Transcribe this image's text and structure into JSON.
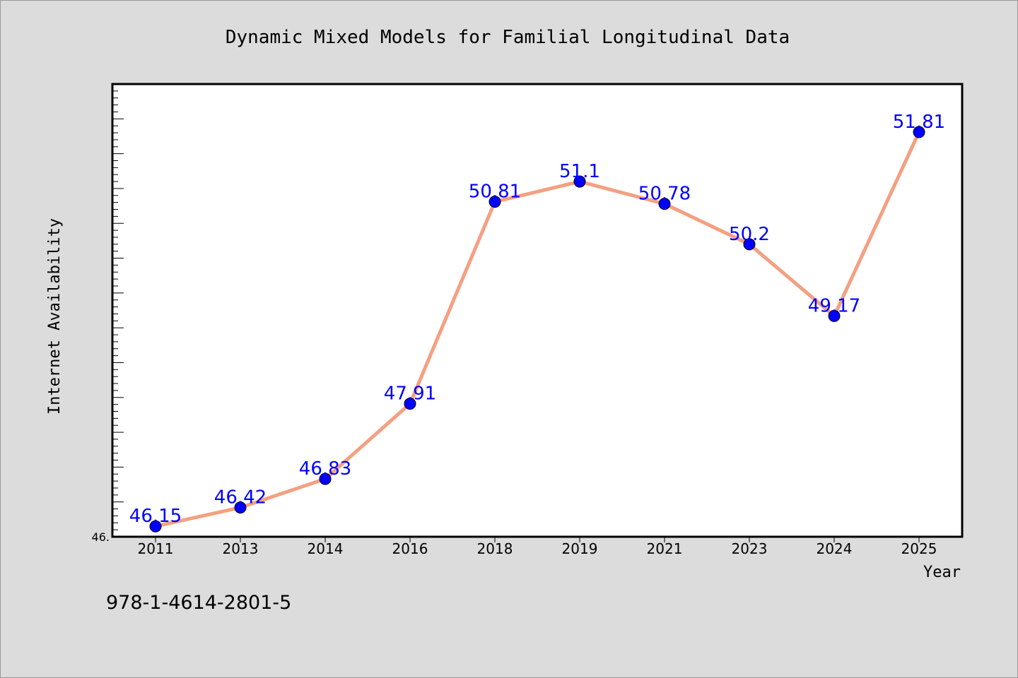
{
  "footer_text": "978-1-4614-2801-5",
  "colors": {
    "background": "#dcdcdc",
    "plot_area": "#ffffff",
    "line": "#f4a082",
    "marker": "#0000ff",
    "data_label": "#0000ff"
  },
  "chart_data": {
    "type": "line",
    "title": "Dynamic Mixed Models for Familial Longitudinal Data",
    "xlabel": "Year",
    "ylabel": "Internet Availability",
    "categories": [
      "2011",
      "2013",
      "2014",
      "2016",
      "2018",
      "2019",
      "2021",
      "2023",
      "2024",
      "2025"
    ],
    "series": [
      {
        "values": [
          46.15,
          46.42,
          46.83,
          47.91,
          50.81,
          51.1,
          50.78,
          50.2,
          49.17,
          51.81
        ]
      }
    ],
    "data_labels": [
      "46.15",
      "46.42",
      "46.83",
      "47.91",
      "50.81",
      "51.1",
      "50.78",
      "50.2",
      "49.17",
      "51.81"
    ],
    "ytick_labels": [
      "46."
    ],
    "ylim": [
      46.0,
      52.5
    ],
    "grid": false,
    "legend": "none"
  }
}
